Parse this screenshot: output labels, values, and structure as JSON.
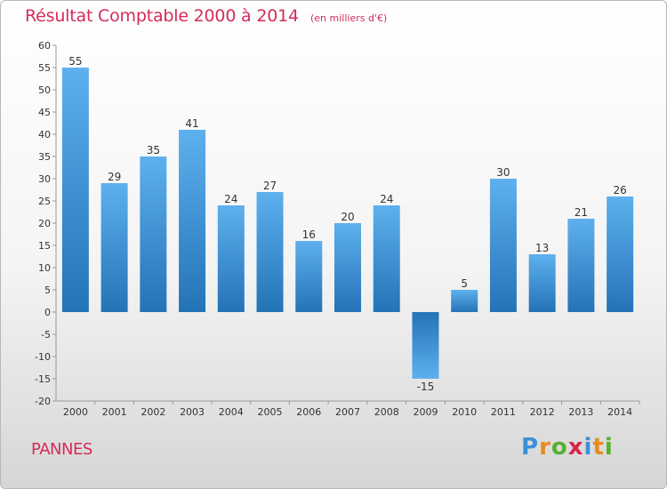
{
  "chart_data": {
    "type": "bar",
    "title": "Résultat Comptable 2000 à 2014",
    "subtitle": "(en milliers d'€)",
    "categories": [
      "2000",
      "2001",
      "2002",
      "2003",
      "2004",
      "2005",
      "2006",
      "2007",
      "2008",
      "2009",
      "2010",
      "2011",
      "2012",
      "2013",
      "2014"
    ],
    "values": [
      55,
      29,
      35,
      41,
      24,
      27,
      16,
      20,
      24,
      -15,
      5,
      30,
      13,
      21,
      26
    ],
    "ylim": [
      -20,
      60
    ],
    "yticks": [
      60,
      55,
      50,
      45,
      40,
      35,
      30,
      25,
      20,
      15,
      10,
      5,
      0,
      -5,
      -10,
      -15,
      -20
    ],
    "xlabel": "",
    "ylabel": "",
    "grid": false
  },
  "commune": "PANNES",
  "brand": {
    "letters": [
      "P",
      "r",
      "o",
      "x",
      "i",
      "t",
      "i"
    ],
    "colors": [
      "#3b8fd6",
      "#e98a1e",
      "#55b030",
      "#d6264e",
      "#3b8fd6",
      "#e98a1e",
      "#55b030"
    ]
  },
  "colors": {
    "accent": "#d62b5a",
    "bar_light": "#5fb0ee",
    "bar_dark": "#2373b6"
  }
}
